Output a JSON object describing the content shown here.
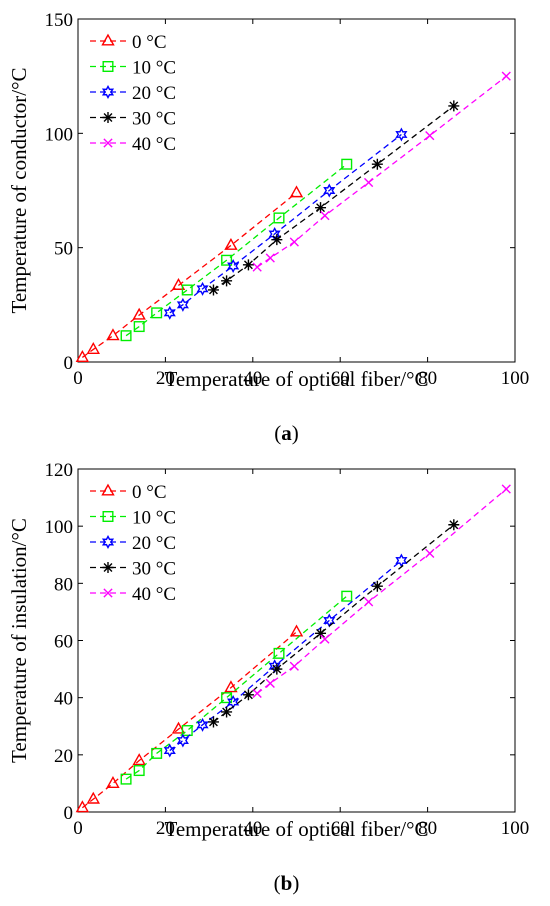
{
  "chart_data": [
    {
      "type": "line",
      "caption_open": "(",
      "caption_letter": "a",
      "caption_close": ")",
      "xlabel": "Temperature of optical fiber/°C",
      "ylabel": "Temperature of conductor/°C",
      "xlim": [
        0,
        100
      ],
      "ylim": [
        0,
        150
      ],
      "xticks": [
        0,
        20,
        40,
        60,
        80,
        100
      ],
      "yticks": [
        0,
        50,
        100,
        150
      ],
      "legend_position": "top-left",
      "series": [
        {
          "name": "0 °C",
          "color": "#ff0000",
          "marker": "triangle",
          "x": [
            1,
            3.5,
            8,
            14,
            23,
            35,
            50
          ],
          "y": [
            2,
            5.5,
            11.5,
            20.5,
            33.5,
            51,
            74
          ]
        },
        {
          "name": "10 °C",
          "color": "#00ee00",
          "marker": "square",
          "x": [
            11,
            14,
            18,
            25,
            34,
            46,
            61.5
          ],
          "y": [
            11.5,
            15.5,
            21.5,
            31.5,
            44.5,
            63,
            86.5
          ]
        },
        {
          "name": "20 °C",
          "color": "#0000ff",
          "marker": "hexagram",
          "x": [
            21,
            24,
            28.5,
            35.5,
            45,
            57.5,
            74
          ],
          "y": [
            21.5,
            25,
            32,
            42,
            56,
            75,
            99.5
          ]
        },
        {
          "name": "30 °C",
          "color": "#000000",
          "marker": "asterisk",
          "x": [
            31,
            34,
            39,
            45.5,
            55.5,
            68.5,
            86
          ],
          "y": [
            31.5,
            35.5,
            42.5,
            53.5,
            67.5,
            86.5,
            112
          ]
        },
        {
          "name": "40 °C",
          "color": "#ff00ff",
          "marker": "x",
          "x": [
            41,
            44,
            49.5,
            56.5,
            66.5,
            80.5,
            98
          ],
          "y": [
            41.5,
            45.5,
            52.5,
            64,
            78.5,
            99,
            125
          ]
        }
      ]
    },
    {
      "type": "line",
      "caption_open": "(",
      "caption_letter": "b",
      "caption_close": ")",
      "xlabel": "Temperature of optical fiber/°C",
      "ylabel": "Temperature of insulation/°C",
      "xlim": [
        0,
        100
      ],
      "ylim": [
        0,
        120
      ],
      "xticks": [
        0,
        20,
        40,
        60,
        80,
        100
      ],
      "yticks": [
        0,
        20,
        40,
        60,
        80,
        100,
        120
      ],
      "legend_position": "top-left",
      "series": [
        {
          "name": "0 °C",
          "color": "#ff0000",
          "marker": "triangle",
          "x": [
            1,
            3.5,
            8,
            14,
            23,
            35,
            50
          ],
          "y": [
            1.5,
            4.5,
            10,
            18,
            29,
            43.5,
            63
          ]
        },
        {
          "name": "10 °C",
          "color": "#00ee00",
          "marker": "square",
          "x": [
            11,
            14,
            18,
            25,
            34,
            46,
            61.5
          ],
          "y": [
            11.5,
            14.5,
            20.5,
            28.5,
            40,
            55.5,
            75.5
          ]
        },
        {
          "name": "20 °C",
          "color": "#0000ff",
          "marker": "hexagram",
          "x": [
            21,
            24,
            28.5,
            35.5,
            45,
            57.5,
            74
          ],
          "y": [
            21.5,
            25,
            30.5,
            38.5,
            51,
            67,
            88
          ]
        },
        {
          "name": "30 °C",
          "color": "#000000",
          "marker": "asterisk",
          "x": [
            31,
            34,
            39,
            45.5,
            55.5,
            68.5,
            86
          ],
          "y": [
            31.5,
            35,
            41,
            50,
            62.5,
            79,
            100.5
          ]
        },
        {
          "name": "40 °C",
          "color": "#ff00ff",
          "marker": "x",
          "x": [
            41,
            44,
            49.5,
            56.5,
            66.5,
            80.5,
            98
          ],
          "y": [
            41.5,
            45,
            51,
            60.5,
            73.5,
            90.5,
            113
          ]
        }
      ]
    }
  ]
}
